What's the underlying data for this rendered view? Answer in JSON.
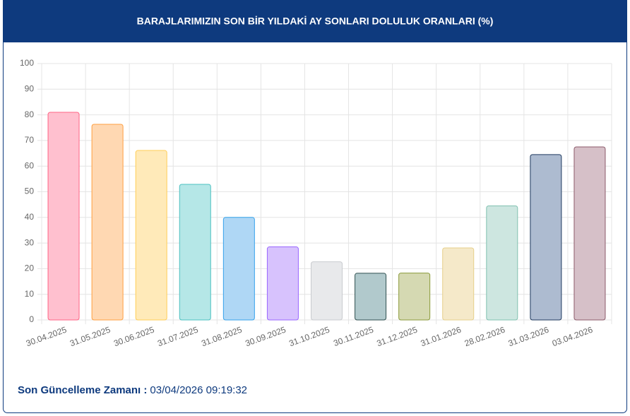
{
  "header": {
    "title": "BARAJLARIMIZIN SON BİR YILDAKİ AY SONLARI DOLULUK ORANLARI (%)"
  },
  "chart_data": {
    "type": "bar",
    "categories": [
      "30.04.2025",
      "31.05.2025",
      "30.06.2025",
      "31.07.2025",
      "31.08.2025",
      "30.09.2025",
      "31.10.2025",
      "30.11.2025",
      "31.12.2025",
      "31.01.2026",
      "28.02.2026",
      "31.03.2026",
      "03.04.2026"
    ],
    "values": [
      81,
      76.3,
      66.1,
      52.9,
      40,
      28.5,
      22.7,
      18.2,
      18.3,
      28.1,
      44.5,
      64.5,
      67.5
    ],
    "colors": [
      "#ffc0cf",
      "#ffd8b2",
      "#ffeab9",
      "#b5e7e7",
      "#afd7f5",
      "#d7c2fd",
      "#e8e9eb",
      "#b1c9cc",
      "#d5d9b2",
      "#f5e9c9",
      "#cde6e0",
      "#adbbd0",
      "#d6c0c8"
    ],
    "border_colors": [
      "#ff6384",
      "#ff9f40",
      "#ffcd56",
      "#4bc0c0",
      "#36a2eb",
      "#9966ff",
      "#c9cbcf",
      "#2f4f4f",
      "#8a9a3a",
      "#e6cf8a",
      "#80c1b0",
      "#1f3a5f",
      "#8c5a6a"
    ],
    "ylim": [
      0,
      100
    ],
    "yticks": [
      0,
      10,
      20,
      30,
      40,
      50,
      60,
      70,
      80,
      90,
      100
    ],
    "grid": true
  },
  "footer": {
    "label": "Son Güncelleme Zamanı :",
    "value": "03/04/2026 09:19:32"
  }
}
